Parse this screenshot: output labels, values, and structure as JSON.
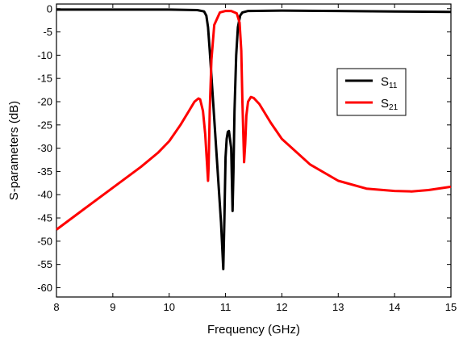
{
  "chart_data": {
    "type": "line",
    "title": "",
    "xlabel": "Frequency (GHz)",
    "ylabel": "S-parameters (dB)",
    "xlim": [
      8,
      15
    ],
    "ylim": [
      -62,
      1
    ],
    "xticks": [
      8,
      9,
      10,
      11,
      12,
      13,
      14,
      15
    ],
    "yticks": [
      0,
      -5,
      -10,
      -15,
      -20,
      -25,
      -30,
      -35,
      -40,
      -45,
      -50,
      -55,
      -60
    ],
    "grid": false,
    "legend": {
      "placement": "top-right",
      "entries": [
        {
          "main": "S",
          "sub": "11"
        },
        {
          "main": "S",
          "sub": "21"
        }
      ]
    },
    "series": [
      {
        "name": "S11",
        "color": "#000000",
        "x": [
          8.0,
          9.0,
          10.0,
          10.5,
          10.62,
          10.66,
          10.69,
          10.72,
          10.78,
          10.85,
          10.92,
          10.96,
          10.98,
          11.0,
          11.02,
          11.04,
          11.06,
          11.1,
          11.125,
          11.14,
          11.16,
          11.19,
          11.22,
          11.26,
          11.3,
          11.4,
          12.0,
          13.0,
          14.0,
          15.0
        ],
        "y": [
          -0.2,
          -0.2,
          -0.2,
          -0.3,
          -0.6,
          -1.5,
          -4.0,
          -9.0,
          -20.0,
          -33.0,
          -46.0,
          -56.0,
          -45.0,
          -32.0,
          -28.0,
          -26.5,
          -26.3,
          -30.0,
          -43.5,
          -35.0,
          -22.0,
          -10.0,
          -4.0,
          -1.5,
          -0.8,
          -0.5,
          -0.4,
          -0.5,
          -0.6,
          -0.7
        ]
      },
      {
        "name": "S21",
        "color": "#ff0000",
        "x": [
          8.0,
          8.5,
          9.0,
          9.5,
          9.8,
          10.0,
          10.2,
          10.35,
          10.45,
          10.52,
          10.55,
          10.6,
          10.64,
          10.67,
          10.69,
          10.7,
          10.72,
          10.75,
          10.8,
          10.9,
          11.0,
          11.1,
          11.2,
          11.25,
          11.28,
          11.3,
          11.33,
          11.35,
          11.37,
          11.4,
          11.45,
          11.5,
          11.6,
          11.8,
          12.0,
          12.5,
          13.0,
          13.5,
          14.0,
          14.3,
          14.6,
          15.0
        ],
        "y": [
          -47.5,
          -43.0,
          -38.5,
          -34.0,
          -31.0,
          -28.5,
          -25.0,
          -22.0,
          -20.0,
          -19.3,
          -19.5,
          -22.0,
          -27.0,
          -33.0,
          -37.0,
          -34.0,
          -22.0,
          -11.0,
          -3.5,
          -0.8,
          -0.5,
          -0.5,
          -1.0,
          -3.0,
          -9.0,
          -20.0,
          -33.0,
          -29.0,
          -23.0,
          -20.0,
          -19.0,
          -19.2,
          -20.5,
          -24.5,
          -28.0,
          -33.5,
          -37.0,
          -38.7,
          -39.2,
          -39.3,
          -39.0,
          -38.3
        ]
      }
    ]
  }
}
